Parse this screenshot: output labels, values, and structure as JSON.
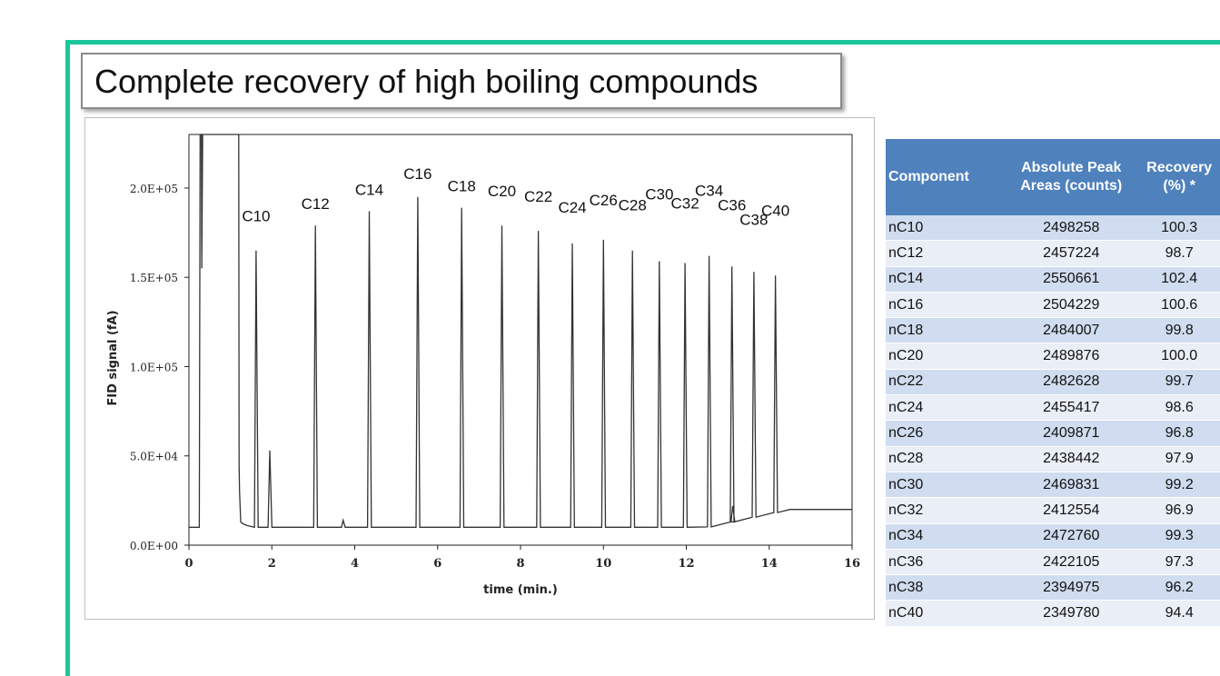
{
  "slide": {
    "title": "Complete recovery of high boiling compounds",
    "frame_color": "#19c79a"
  },
  "chart_data": {
    "type": "line",
    "xlabel": "time (min.)",
    "ylabel": "FID signal (fA)",
    "xlim": [
      0,
      16
    ],
    "ylim": [
      0,
      230000
    ],
    "x_ticks": [
      "0",
      "2",
      "4",
      "6",
      "8",
      "10",
      "12",
      "14",
      "16"
    ],
    "y_ticks": [
      "0.0E+00",
      "5.0E+04",
      "1.0E+05",
      "1.5E+05",
      "2.0E+05"
    ],
    "baseline_start": 10000,
    "baseline_end": 20000,
    "peaks": [
      {
        "label": "C10",
        "x": 1.62,
        "y": 165000
      },
      {
        "label": "C12",
        "x": 3.05,
        "y": 179000
      },
      {
        "label": "C14",
        "x": 4.35,
        "y": 187000
      },
      {
        "label": "C16",
        "x": 5.52,
        "y": 195000
      },
      {
        "label": "C18",
        "x": 6.58,
        "y": 189000
      },
      {
        "label": "C20",
        "x": 7.55,
        "y": 179000
      },
      {
        "label": "C22",
        "x": 8.43,
        "y": 176000
      },
      {
        "label": "C24",
        "x": 9.25,
        "y": 169000
      },
      {
        "label": "C26",
        "x": 10.0,
        "y": 171000
      },
      {
        "label": "C28",
        "x": 10.7,
        "y": 165000
      },
      {
        "label": "C30",
        "x": 11.35,
        "y": 159000
      },
      {
        "label": "C32",
        "x": 11.97,
        "y": 158000
      },
      {
        "label": "C34",
        "x": 12.55,
        "y": 162000
      },
      {
        "label": "C36",
        "x": 13.1,
        "y": 156000
      },
      {
        "label": "C38",
        "x": 13.63,
        "y": 153000
      },
      {
        "label": "C40",
        "x": 14.15,
        "y": 151000
      }
    ],
    "minor_peaks": [
      {
        "x": 1.95,
        "y": 53000
      },
      {
        "x": 3.72,
        "y": 14000
      },
      {
        "x": 13.12,
        "y": 22000
      }
    ],
    "line_color": "#333333"
  },
  "table": {
    "header_color": "#4f81bd",
    "headers": [
      "Component",
      "Absolute Peak Areas (counts)",
      "Recovery (%) *"
    ],
    "rows": [
      [
        "nC10",
        "2498258",
        "100.3"
      ],
      [
        "nC12",
        "2457224",
        "98.7"
      ],
      [
        "nC14",
        "2550661",
        "102.4"
      ],
      [
        "nC16",
        "2504229",
        "100.6"
      ],
      [
        "nC18",
        "2484007",
        "99.8"
      ],
      [
        "nC20",
        "2489876",
        "100.0"
      ],
      [
        "nC22",
        "2482628",
        "99.7"
      ],
      [
        "nC24",
        "2455417",
        "98.6"
      ],
      [
        "nC26",
        "2409871",
        "96.8"
      ],
      [
        "nC28",
        "2438442",
        "97.9"
      ],
      [
        "nC30",
        "2469831",
        "99.2"
      ],
      [
        "nC32",
        "2412554",
        "96.9"
      ],
      [
        "nC34",
        "2472760",
        "99.3"
      ],
      [
        "nC36",
        "2422105",
        "97.3"
      ],
      [
        "nC38",
        "2394975",
        "96.2"
      ],
      [
        "nC40",
        "2349780",
        "94.4"
      ]
    ]
  }
}
